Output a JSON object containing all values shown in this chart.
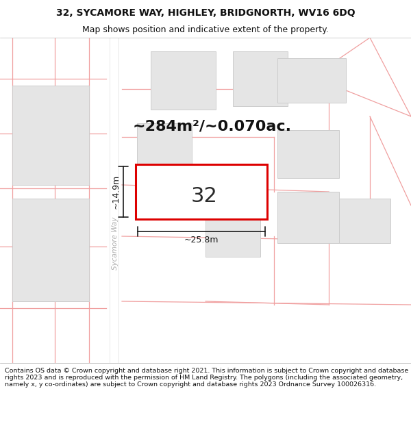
{
  "title_line1": "32, SYCAMORE WAY, HIGHLEY, BRIDGNORTH, WV16 6DQ",
  "title_line2": "Map shows position and indicative extent of the property.",
  "area_text": "~284m²/~0.070ac.",
  "house_number": "32",
  "dim_width": "~25.8m",
  "dim_height": "~14.9m",
  "road_label": "Sycamore Way",
  "footer_text": "Contains OS data © Crown copyright and database right 2021. This information is subject to Crown copyright and database rights 2023 and is reproduced with the permission of HM Land Registry. The polygons (including the associated geometry, namely x, y co-ordinates) are subject to Crown copyright and database rights 2023 Ordnance Survey 100026316.",
  "map_bg": "#f7f7f4",
  "building_fill": "#e5e5e5",
  "building_edge": "#cccccc",
  "red_line_color": "#dd0000",
  "pink_line_color": "#f0a0a0",
  "dim_line_color": "#1a1a1a",
  "title_color": "#111111",
  "footer_color": "#111111",
  "road_text_color": "#b0b0b0",
  "road_stripe_color": "#e8e8e8",
  "title_fontsize": 10,
  "subtitle_fontsize": 9,
  "area_fontsize": 16,
  "footer_fontsize": 6.8,
  "house_fontsize": 22,
  "dim_fontsize": 9
}
